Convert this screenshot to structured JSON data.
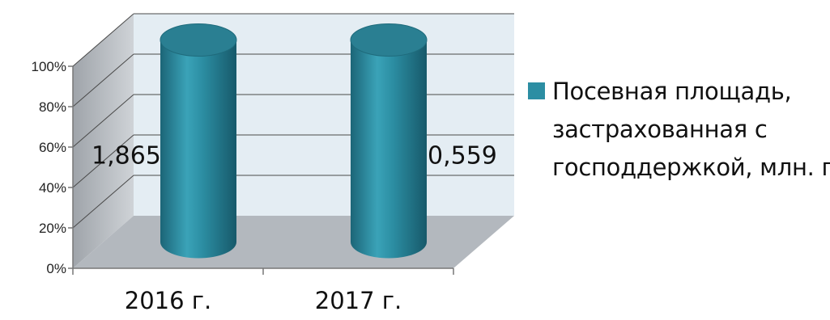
{
  "chart_data": {
    "type": "bar",
    "style": "3d-cylinder-percent-stacked",
    "categories": [
      "2016 г.",
      "2017 г."
    ],
    "series": [
      {
        "name": "Посевная площадь, застрахованная с господдержкой, млн. га",
        "values": [
          1.865,
          0.559
        ],
        "data_labels": [
          "1,865",
          "0,559"
        ]
      }
    ],
    "y_tick_labels": [
      "0%",
      "20%",
      "40%",
      "60%",
      "80%",
      "100%"
    ],
    "ylim": [
      0,
      100
    ],
    "grid": true,
    "legend_position": "right",
    "legend_lines": [
      "Посевная площадь,",
      "застрахованная с",
      "господдержкой, млн. га"
    ],
    "colors": {
      "bar": "#2c8ea3",
      "bar_dark": "#1a5f70",
      "bar_top": "#2a7f92",
      "back_wall": "#e4edf3",
      "side_wall": "#bfc3c8",
      "floor": "#b3b8be",
      "grid": "#4a4a4a"
    }
  }
}
